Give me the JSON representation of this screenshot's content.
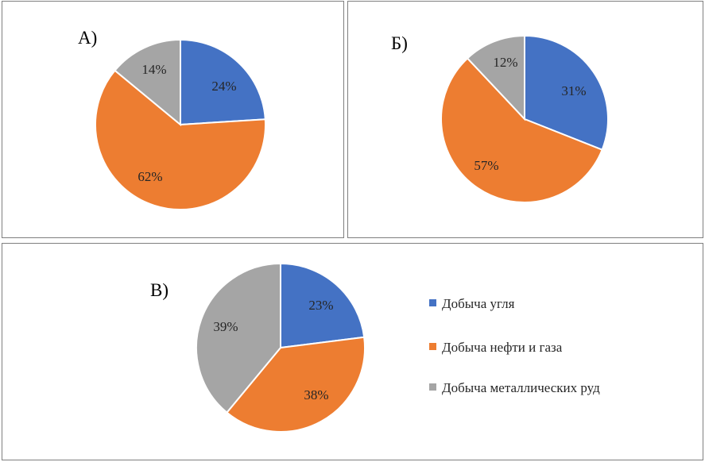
{
  "colors": {
    "coal": "#4472C4",
    "oil_gas": "#ED7D31",
    "metal": "#A5A5A5"
  },
  "chart_data": [
    {
      "type": "pie",
      "title": "А)",
      "categories": [
        "Добыча угля",
        "Добыча нефти и газа",
        "Добыча металлических руд"
      ],
      "values": [
        24,
        62,
        14
      ],
      "labels": [
        "24%",
        "62%",
        "14%"
      ]
    },
    {
      "type": "pie",
      "title": "Б)",
      "categories": [
        "Добыча угля",
        "Добыча нефти и газа",
        "Добыча металлических руд"
      ],
      "values": [
        31,
        57,
        12
      ],
      "labels": [
        "31%",
        "57%",
        "12%"
      ]
    },
    {
      "type": "pie",
      "title": "В)",
      "categories": [
        "Добыча угля",
        "Добыча нефти и газа",
        "Добыча металлических руд"
      ],
      "values": [
        23,
        38,
        39
      ],
      "labels": [
        "23%",
        "38%",
        "39%"
      ],
      "legend": {
        "position": "right",
        "entries": [
          "Добыча угля",
          "Добыча нефти и газа",
          "Добыча металлических руд"
        ]
      }
    }
  ]
}
